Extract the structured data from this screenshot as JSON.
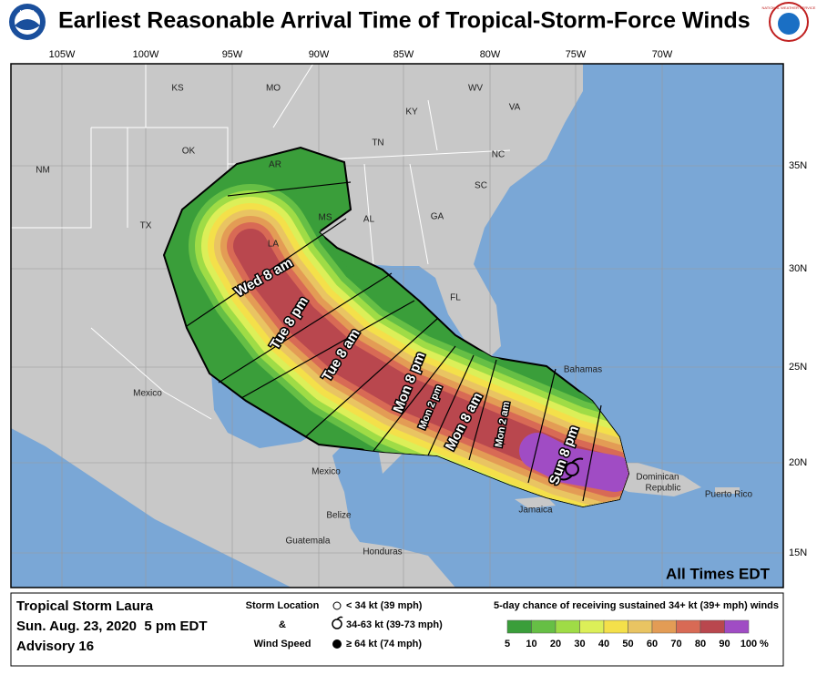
{
  "header": {
    "title": "Earliest Reasonable Arrival Time of Tropical-Storm-Force Winds",
    "noaa_logo": "NOAA",
    "nws_logo": "NATIONAL WEATHER SERVICE"
  },
  "map": {
    "longitudes": [
      "105W",
      "100W",
      "95W",
      "90W",
      "85W",
      "80W",
      "75W",
      "70W"
    ],
    "latitudes": [
      "35N",
      "30N",
      "25N",
      "20N",
      "15N"
    ],
    "places": [
      "KS",
      "MO",
      "WV",
      "VA",
      "KY",
      "TN",
      "NC",
      "OK",
      "AR",
      "SC",
      "NM",
      "TX",
      "MS",
      "AL",
      "GA",
      "LA",
      "FL",
      "Bahamas",
      "Mexico",
      "Mexico",
      "Belize",
      "Jamaica",
      "Guatemala",
      "Honduras",
      "Dominican",
      "Republic",
      "Puerto Rico"
    ],
    "times": [
      "Wed 8 am",
      "Tue 8 pm",
      "Tue 8 am",
      "Mon 8 pm",
      "Mon 2 pm",
      "Mon 8 am",
      "Mon 2 am",
      "Sun 8 pm"
    ],
    "note": "All Times EDT"
  },
  "footer": {
    "storm": "Tropical Storm Laura",
    "date": "Sun. Aug. 23, 2020  5 pm EDT",
    "advisory": "Advisory 16",
    "key_title": [
      "Storm Location",
      "&",
      "Wind Speed"
    ],
    "key_items": [
      "< 34 kt (39 mph)",
      "34-63 kt (39-73 mph)",
      "≥ 64 kt (74 mph)"
    ],
    "scale_title": "5-day chance of receiving sustained 34+ kt (39+ mph) winds",
    "scale_values": [
      5,
      10,
      20,
      30,
      40,
      50,
      60,
      70,
      80,
      90,
      100
    ],
    "scale_unit": "%",
    "scale_colors": [
      "#3a9e3a",
      "#66bf45",
      "#9fdc46",
      "#dcef58",
      "#f4e04a",
      "#e9c462",
      "#e39c55",
      "#d86a55",
      "#b9474e",
      "#a04cc4"
    ]
  }
}
